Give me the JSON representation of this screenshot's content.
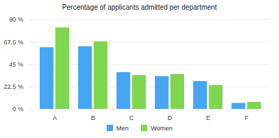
{
  "chart_data": {
    "type": "bar",
    "title": "Percentage of applicants admitted per department",
    "categories": [
      "A",
      "B",
      "C",
      "D",
      "E",
      "F"
    ],
    "series": [
      {
        "name": "Men",
        "color": "#46a6f2",
        "values": [
          62,
          63,
          37,
          33,
          28,
          6
        ]
      },
      {
        "name": "Women",
        "color": "#7fd651",
        "values": [
          82,
          68,
          34,
          35,
          24,
          7
        ]
      }
    ],
    "ylim": [
      0,
      90
    ],
    "yticks": [
      {
        "value": 0,
        "label": "0 %"
      },
      {
        "value": 22.5,
        "label": "22.5 %"
      },
      {
        "value": 45,
        "label": "45 %"
      },
      {
        "value": 67.5,
        "label": "67.5 %"
      },
      {
        "value": 90,
        "label": "90 %"
      }
    ],
    "grid": true,
    "legend": "bottom"
  }
}
